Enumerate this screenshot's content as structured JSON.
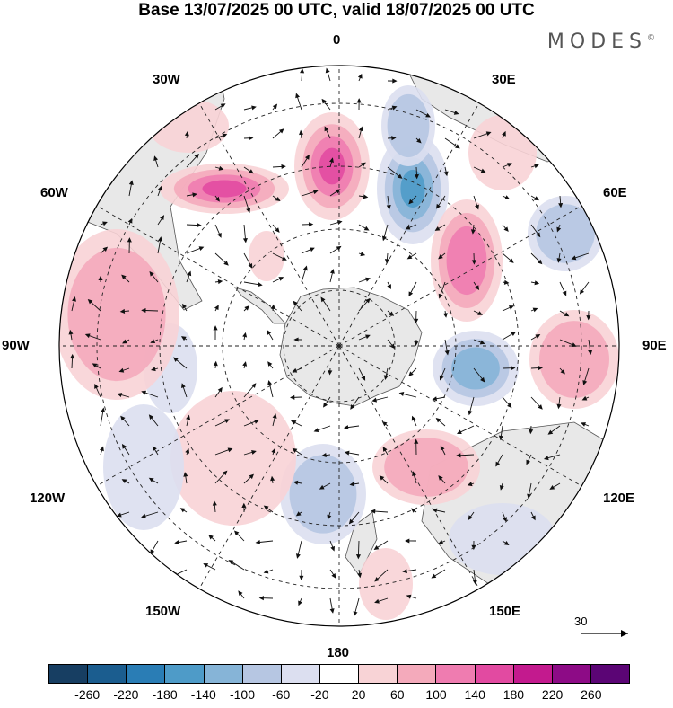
{
  "title": "Base 13/07/2025 00 UTC, valid 18/07/2025 00 UTC",
  "brand": "MODES",
  "brand_mark": "©",
  "longitude_labels": {
    "n": "0",
    "ne": "30E",
    "e": "60E",
    "e90": "90E",
    "se": "120E",
    "sse": "150E",
    "s": "180",
    "ssw": "150W",
    "sw": "120W",
    "w90": "90W",
    "w": "60W",
    "nw": "30W"
  },
  "reference_vector": "30",
  "colorbar": {
    "colors": [
      "#173e62",
      "#1b5d8f",
      "#2a7db5",
      "#4e9bc8",
      "#86b4d7",
      "#b6c6e2",
      "#dcdff0",
      "#ffffff",
      "#f8d3d6",
      "#f4aabb",
      "#ef7cb0",
      "#e24aa1",
      "#c31a8e",
      "#8d0b86",
      "#5b0575"
    ],
    "labels": [
      "-260",
      "-220",
      "-180",
      "-140",
      "-100",
      "-60",
      "-20",
      "20",
      "60",
      "100",
      "140",
      "180",
      "220",
      "260"
    ]
  },
  "anomalies": [
    {
      "sign": "+",
      "level": 4
    },
    {
      "sign": "-",
      "level": 4
    },
    {
      "sign": "+",
      "level": 3
    },
    {
      "sign": "-",
      "level": 3
    },
    {
      "sign": "+",
      "level": 2
    },
    {
      "sign": "-",
      "level": 2
    },
    {
      "sign": "+",
      "level": 4
    },
    {
      "sign": "-",
      "level": 2
    },
    {
      "sign": "+",
      "level": 2
    },
    {
      "sign": "+",
      "level": 1
    },
    {
      "sign": "-",
      "level": 1
    },
    {
      "sign": "+",
      "level": 2
    },
    {
      "sign": "-",
      "level": 2
    },
    {
      "sign": "+",
      "level": 1
    },
    {
      "sign": "-",
      "level": 1
    },
    {
      "sign": "+",
      "level": 1
    },
    {
      "sign": "+",
      "level": 1
    },
    {
      "sign": "+",
      "level": 1
    },
    {
      "sign": "-",
      "level": 1
    }
  ]
}
